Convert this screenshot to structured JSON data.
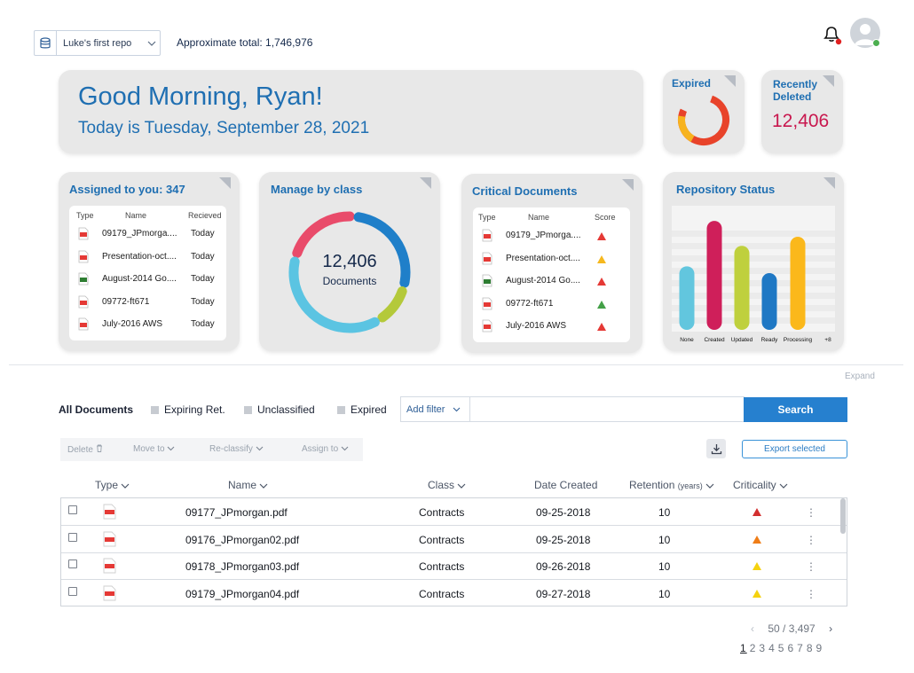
{
  "topbar": {
    "repo_name": "Luke's first repo",
    "approx_total": "Approximate total: 1,746,976"
  },
  "greeting": {
    "title": "Good Morning, Ryan!",
    "date": "Today is Tuesday, September 28, 2021"
  },
  "expired_card": {
    "title": "Expired",
    "ring_colors": [
      "#f7b31e",
      "#e8432a"
    ]
  },
  "recently_deleted": {
    "title_line1": "Recently",
    "title_line2": "Deleted",
    "count": "12,406"
  },
  "assigned": {
    "title": "Assigned to you: 347",
    "headers": {
      "type": "Type",
      "name": "Name",
      "received": "Recieved"
    },
    "rows": [
      {
        "name": "09179_JPmorga....",
        "received": "Today",
        "icon": "pdf-icon"
      },
      {
        "name": "Presentation-oct....",
        "received": "Today",
        "icon": "ppt-icon"
      },
      {
        "name": "August-2014 Go....",
        "received": "Today",
        "icon": "xls-icon"
      },
      {
        "name": "09772-ft671",
        "received": "Today",
        "icon": "pdf-icon"
      },
      {
        "name": "July-2016 AWS",
        "received": "Today",
        "icon": "pdf-icon"
      }
    ]
  },
  "manage_class": {
    "title": "Manage by class",
    "count": "12,406",
    "label": "Documents",
    "segments": [
      {
        "color": "#e94b6a",
        "share": 0.22
      },
      {
        "color": "#1f7fc9",
        "share": 0.28
      },
      {
        "color": "#b4c93a",
        "share": 0.12
      },
      {
        "color": "#5bc4e2",
        "share": 0.38
      }
    ]
  },
  "critical": {
    "title": "Critical Documents",
    "headers": {
      "type": "Type",
      "name": "Name",
      "score": "Score"
    },
    "rows": [
      {
        "name": "09179_JPmorga....",
        "score_color": "#e53935",
        "icon": "pdf-icon"
      },
      {
        "name": "Presentation-oct....",
        "score_color": "#f6b81e",
        "icon": "ppt-icon"
      },
      {
        "name": "August-2014 Go....",
        "score_color": "#e53935",
        "icon": "xls-icon"
      },
      {
        "name": "09772-ft671",
        "score_color": "#43a047",
        "icon": "pdf-icon"
      },
      {
        "name": "July-2016 AWS",
        "score_color": "#e53935",
        "icon": "pdf-icon"
      }
    ]
  },
  "repo_status": {
    "title": "Repository Status",
    "bars": [
      {
        "label": "None",
        "value": 0.56,
        "color": "#62c6de"
      },
      {
        "label": "Created",
        "value": 0.96,
        "color": "#cf1f5a"
      },
      {
        "label": "Updated",
        "value": 0.74,
        "color": "#bfd03d"
      },
      {
        "label": "Ready",
        "value": 0.5,
        "color": "#1f78c4"
      },
      {
        "label": "Processing",
        "value": 0.82,
        "color": "#fbb81b"
      },
      {
        "label": "+8",
        "value": 0,
        "color": "#000000"
      }
    ]
  },
  "expand_label": "Expand",
  "filters": {
    "all": "All Documents",
    "expiring": "Expiring Ret.",
    "unclassified": "Unclassified",
    "expired": "Expired",
    "add_filter": "Add filter",
    "search_placeholder": "",
    "search_button": "Search"
  },
  "actions": {
    "delete": "Delete",
    "move_to": "Move to",
    "reclassify": "Re-classify",
    "assign_to": "Assign to",
    "export": "Export selected"
  },
  "table": {
    "headers": {
      "type": "Type",
      "name": "Name",
      "class": "Class",
      "date": "Date Created",
      "retention": "Retention",
      "retention_unit": "(years)",
      "criticality": "Criticality"
    },
    "rows": [
      {
        "name": "09177_JPmorgan.pdf",
        "class": "Contracts",
        "date": "09-25-2018",
        "retention": "10",
        "crit_color": "#d32f2f"
      },
      {
        "name": "09176_JPmorgan02.pdf",
        "class": "Contracts",
        "date": "09-25-2018",
        "retention": "10",
        "crit_color": "#ef7d17"
      },
      {
        "name": "09178_JPmorgan03.pdf",
        "class": "Contracts",
        "date": "09-26-2018",
        "retention": "10",
        "crit_color": "#f5d20f"
      },
      {
        "name": "09179_JPmorgan04.pdf",
        "class": "Contracts",
        "date": "09-27-2018",
        "retention": "10",
        "crit_color": "#f5d20f"
      }
    ]
  },
  "pagination": {
    "range": "50 / 3,497",
    "pages": [
      "1",
      "2",
      "3",
      "4",
      "5",
      "6",
      "7",
      "8",
      "9"
    ],
    "current": "1"
  }
}
